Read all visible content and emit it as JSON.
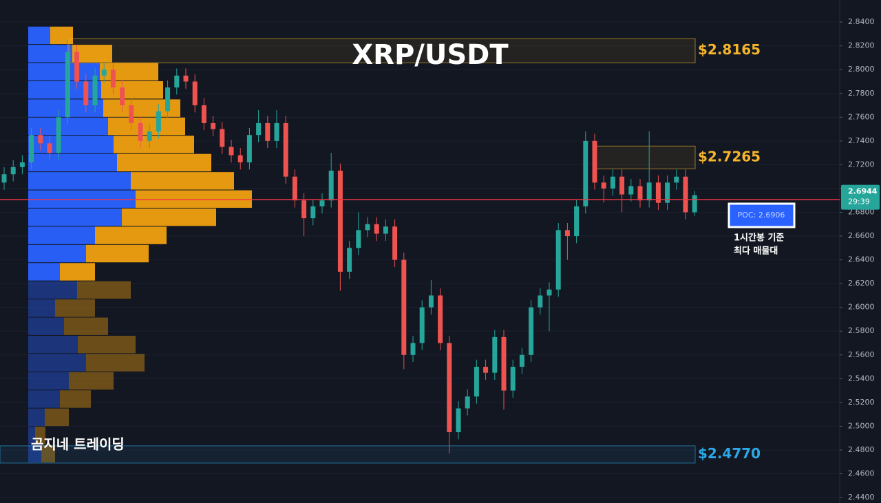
{
  "chart_data": {
    "type": "candlestick",
    "title": "XRP/USDT",
    "open": [
      2.705,
      2.712,
      2.718,
      2.722,
      2.745,
      2.738,
      2.73,
      2.76,
      2.815,
      2.79,
      2.77,
      2.795,
      2.8,
      2.785,
      2.77,
      2.755,
      2.74,
      2.748,
      2.765,
      2.785,
      2.795,
      2.79,
      2.77,
      2.755,
      2.75,
      2.735,
      2.728,
      2.722,
      2.745,
      2.755,
      2.74,
      2.755,
      2.71,
      2.69,
      2.675,
      2.685,
      2.69,
      2.715,
      2.63,
      2.65,
      2.665,
      2.67,
      2.662,
      2.668,
      2.64,
      2.56,
      2.57,
      2.6,
      2.61,
      2.57,
      2.495,
      2.515,
      2.525,
      2.55,
      2.545,
      2.575,
      2.53,
      2.55,
      2.56,
      2.6,
      2.61,
      2.615,
      2.665,
      2.66,
      2.685,
      2.74,
      2.705,
      2.7,
      2.71,
      2.695,
      2.702,
      2.69,
      2.705,
      2.688,
      2.705,
      2.71,
      2.68
    ],
    "high": [
      2.718,
      2.724,
      2.728,
      2.751,
      2.751,
      2.744,
      2.766,
      2.825,
      2.821,
      2.796,
      2.801,
      2.806,
      2.806,
      2.791,
      2.776,
      2.761,
      2.754,
      2.771,
      2.791,
      2.801,
      2.801,
      2.796,
      2.776,
      2.761,
      2.756,
      2.741,
      2.734,
      2.751,
      2.766,
      2.761,
      2.766,
      2.761,
      2.716,
      2.696,
      2.691,
      2.696,
      2.73,
      2.721,
      2.656,
      2.68,
      2.676,
      2.676,
      2.674,
      2.674,
      2.646,
      2.576,
      2.606,
      2.623,
      2.616,
      2.576,
      2.521,
      2.531,
      2.556,
      2.556,
      2.581,
      2.581,
      2.556,
      2.566,
      2.606,
      2.616,
      2.621,
      2.671,
      2.671,
      2.691,
      2.748,
      2.746,
      2.711,
      2.716,
      2.716,
      2.708,
      2.708,
      2.748,
      2.711,
      2.711,
      2.716,
      2.716,
      2.698
    ],
    "low": [
      2.699,
      2.706,
      2.712,
      2.716,
      2.732,
      2.724,
      2.724,
      2.754,
      2.784,
      2.764,
      2.764,
      2.789,
      2.779,
      2.764,
      2.749,
      2.734,
      2.734,
      2.742,
      2.759,
      2.779,
      2.784,
      2.764,
      2.749,
      2.744,
      2.729,
      2.722,
      2.716,
      2.716,
      2.739,
      2.734,
      2.734,
      2.704,
      2.684,
      2.66,
      2.669,
      2.679,
      2.684,
      2.614,
      2.624,
      2.644,
      2.659,
      2.656,
      2.656,
      2.634,
      2.548,
      2.554,
      2.564,
      2.594,
      2.564,
      2.477,
      2.489,
      2.509,
      2.519,
      2.539,
      2.539,
      2.514,
      2.524,
      2.544,
      2.554,
      2.594,
      2.58,
      2.609,
      2.64,
      2.654,
      2.679,
      2.699,
      2.688,
      2.694,
      2.68,
      2.689,
      2.684,
      2.684,
      2.682,
      2.682,
      2.699,
      2.674,
      2.677
    ],
    "close": [
      2.712,
      2.718,
      2.722,
      2.745,
      2.738,
      2.73,
      2.76,
      2.815,
      2.79,
      2.77,
      2.795,
      2.8,
      2.785,
      2.77,
      2.755,
      2.74,
      2.748,
      2.765,
      2.785,
      2.795,
      2.79,
      2.77,
      2.755,
      2.75,
      2.735,
      2.728,
      2.722,
      2.745,
      2.755,
      2.74,
      2.755,
      2.71,
      2.69,
      2.675,
      2.685,
      2.69,
      2.715,
      2.63,
      2.65,
      2.665,
      2.67,
      2.662,
      2.668,
      2.64,
      2.56,
      2.57,
      2.6,
      2.61,
      2.57,
      2.495,
      2.515,
      2.525,
      2.55,
      2.545,
      2.575,
      2.53,
      2.55,
      2.56,
      2.6,
      2.61,
      2.615,
      2.665,
      2.66,
      2.685,
      2.74,
      2.705,
      2.7,
      2.71,
      2.695,
      2.702,
      2.69,
      2.705,
      2.688,
      2.705,
      2.71,
      2.68,
      2.6944
    ],
    "up_color": "#26a69a",
    "down_color": "#ef5350",
    "ylim": [
      2.4354,
      2.8586
    ],
    "yticks": [
      {
        "value": 2.44,
        "label": "2.4400"
      },
      {
        "value": 2.46,
        "label": "2.4600"
      },
      {
        "value": 2.48,
        "label": "2.4800"
      },
      {
        "value": 2.5,
        "label": "2.5000"
      },
      {
        "value": 2.52,
        "label": "2.5200"
      },
      {
        "value": 2.54,
        "label": "2.5400"
      },
      {
        "value": 2.56,
        "label": "2.5600"
      },
      {
        "value": 2.58,
        "label": "2.5800"
      },
      {
        "value": 2.6,
        "label": "2.6000"
      },
      {
        "value": 2.62,
        "label": "2.6200"
      },
      {
        "value": 2.64,
        "label": "2.6400"
      },
      {
        "value": 2.66,
        "label": "2.6600"
      },
      {
        "value": 2.68,
        "label": "2.6800"
      },
      {
        "value": 2.7,
        "label": "2.7000"
      },
      {
        "value": 2.72,
        "label": "2.7200"
      },
      {
        "value": 2.74,
        "label": "2.7400"
      },
      {
        "value": 2.76,
        "label": "2.7600"
      },
      {
        "value": 2.78,
        "label": "2.7800"
      },
      {
        "value": 2.8,
        "label": "2.8000"
      },
      {
        "value": 2.82,
        "label": "2.8200"
      },
      {
        "value": 2.84,
        "label": "2.8400"
      }
    ],
    "grid": true,
    "volume_profile": {
      "bins": [
        2.469,
        2.4843,
        2.4996,
        2.5149,
        2.5302,
        2.5455,
        2.5608,
        2.5761,
        2.5914,
        2.6067,
        2.622,
        2.6373,
        2.6526,
        2.6679,
        2.6832,
        2.6985,
        2.7138,
        2.7291,
        2.7444,
        2.7597,
        2.775,
        2.7903,
        2.8056,
        2.8209,
        2.8362
      ],
      "buy": [
        19,
        10,
        24,
        46,
        59,
        84,
        72,
        52,
        39,
        71,
        46,
        84,
        97,
        136,
        156,
        149,
        129,
        124,
        116,
        109,
        106,
        104,
        64,
        32
      ],
      "sell": [
        20,
        15,
        35,
        45,
        65,
        85,
        84,
        64,
        58,
        78,
        51,
        91,
        104,
        137,
        169,
        150,
        137,
        117,
        112,
        112,
        90,
        85,
        58,
        33
      ],
      "buy_color": "#2962ff",
      "sell_color": "#f0a010",
      "value_area": [
        2.622,
        2.8362
      ]
    },
    "levels": [
      {
        "value": 2.8165,
        "label": "$2.8165",
        "color": "#f5b52a",
        "zone": [
          2.8058,
          2.8261
        ]
      },
      {
        "value": 2.7265,
        "label": "$2.7265",
        "color": "#f5b52a",
        "zone": [
          2.7165,
          2.7357
        ]
      },
      {
        "value": 2.477,
        "label": "$2.4770",
        "color": "#2aa8e8",
        "zone": [
          2.469,
          2.4835
        ]
      }
    ],
    "poc": {
      "value": 2.6906,
      "label": "POC: 2.6906",
      "color": "#f23645"
    },
    "last_price": {
      "value": 2.6944,
      "countdown": "29:39"
    },
    "annotation": [
      "1시간봉 기준",
      "최다 매물대"
    ],
    "watermark": "곰지네 트레이딩"
  }
}
